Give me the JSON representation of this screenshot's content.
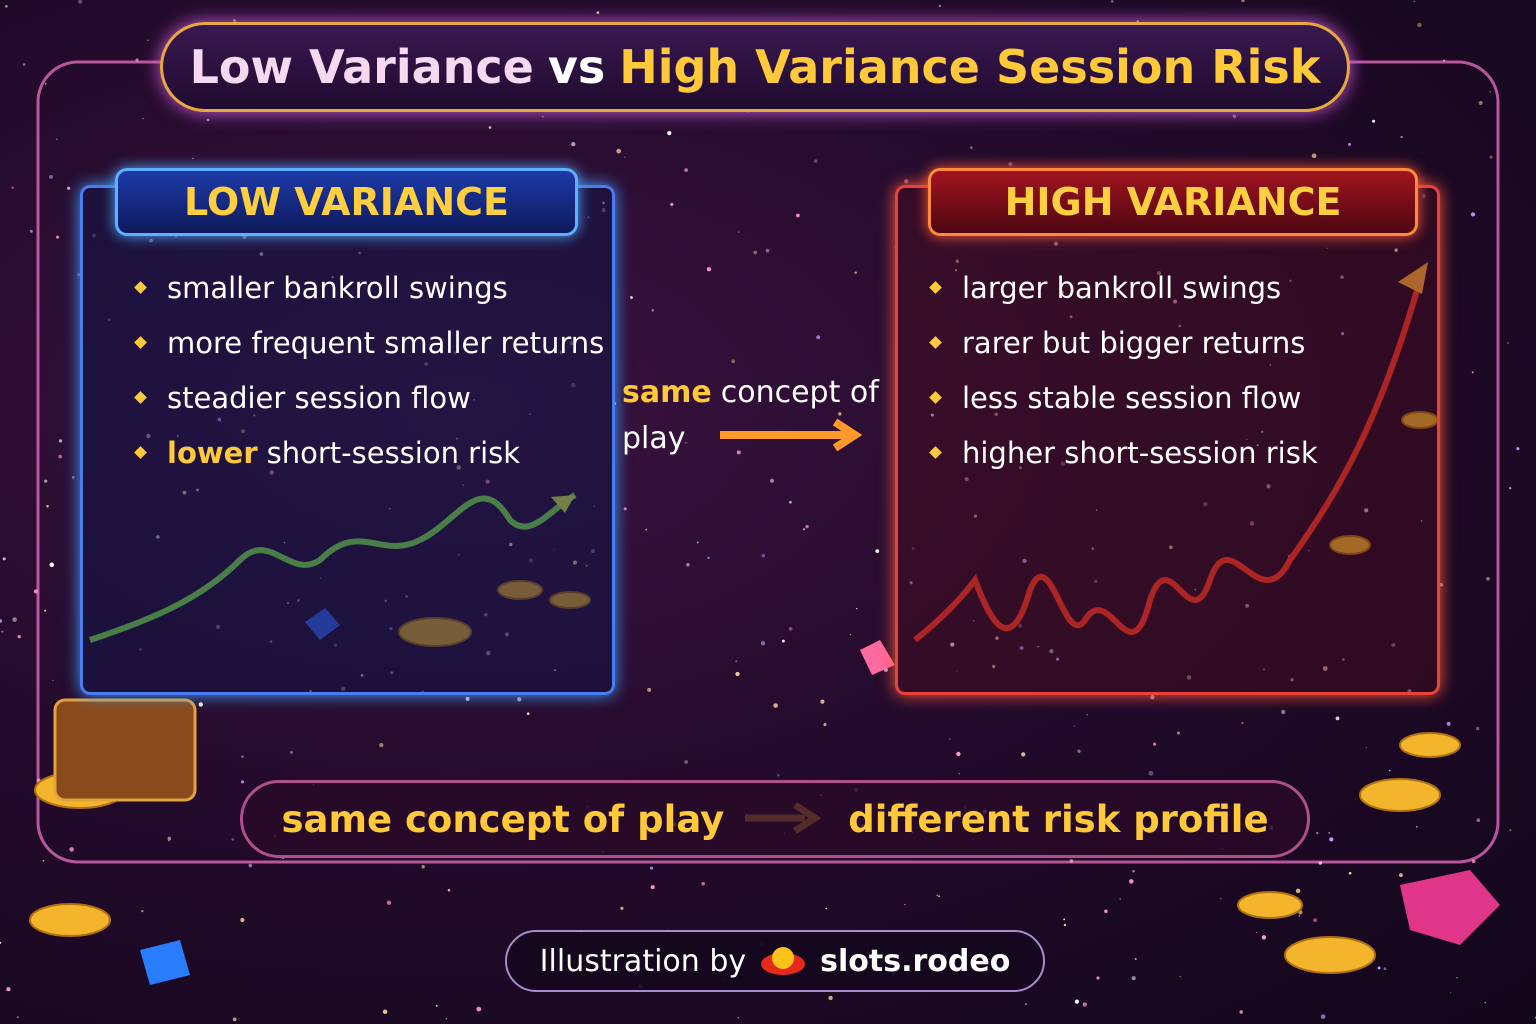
{
  "title": {
    "left": "Low Variance",
    "middle": "vs",
    "right": "High Variance Session Risk"
  },
  "low": {
    "heading": "LOW VARIANCE",
    "items": [
      [
        "smaller bankroll swings"
      ],
      [
        "more frequent smaller returns"
      ],
      [
        "steadier session flow"
      ],
      [
        "lower",
        "short-session risk"
      ]
    ]
  },
  "center": {
    "highlight": "same",
    "text": "concept of play"
  },
  "high": {
    "heading": "HIGH VARIANCE",
    "items": [
      [
        "larger bankroll swings"
      ],
      [
        "rarer but bigger returns"
      ],
      [
        "less stable session flow"
      ],
      [
        "higher short-session risk"
      ]
    ]
  },
  "bottom": {
    "left": "same concept of play",
    "right": "different risk profile"
  },
  "footer": {
    "prefix": "Illustration by",
    "brand": "slots.rodeo"
  }
}
